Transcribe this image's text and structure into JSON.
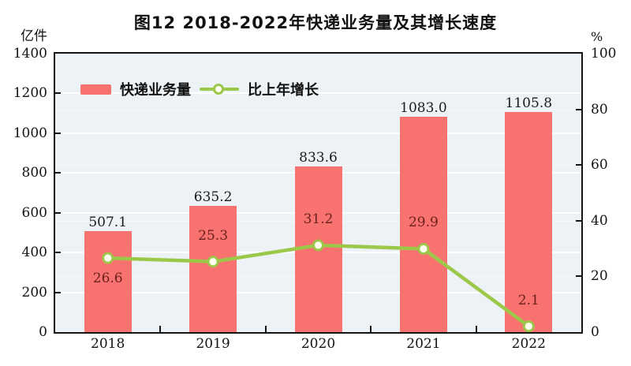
{
  "title": "图12  2018-2022年快递业务量及其增长速度",
  "left_axis": {
    "unit": "亿件",
    "max": 1400,
    "tick_step": 200,
    "ticks": [
      "1400",
      "1200",
      "1000",
      "800",
      "600",
      "400",
      "200",
      "0"
    ]
  },
  "right_axis": {
    "unit": "%",
    "max": 100,
    "tick_step": 20,
    "ticks": [
      "100",
      "80",
      "60",
      "40",
      "20",
      "0"
    ]
  },
  "legend": {
    "items": [
      {
        "label": "快递业务量",
        "type": "bar"
      },
      {
        "label": "比上年增长",
        "type": "line"
      }
    ]
  },
  "chart_data": {
    "type": "bar+line",
    "title": "图12  2018-2022年快递业务量及其增长速度",
    "categories": [
      "2018",
      "2019",
      "2020",
      "2021",
      "2022"
    ],
    "series": [
      {
        "name": "快递业务量",
        "type": "bar",
        "axis": "left",
        "unit": "亿件",
        "values": [
          507.1,
          635.2,
          833.6,
          1083.0,
          1105.8
        ],
        "labels": [
          "507.1",
          "635.2",
          "833.6",
          "1083.0",
          "1105.8"
        ]
      },
      {
        "name": "比上年增长",
        "type": "line",
        "axis": "right",
        "unit": "%",
        "values": [
          26.6,
          25.3,
          31.2,
          29.9,
          2.1
        ],
        "labels": [
          "26.6",
          "25.3",
          "31.2",
          "29.9",
          "2.1"
        ],
        "label_positions": [
          "below",
          "above",
          "above",
          "above",
          "above"
        ]
      }
    ],
    "ylim_left": [
      0,
      1400
    ],
    "ylim_right": [
      0,
      100
    ],
    "grid": true,
    "legend_position": "top-left-inside"
  },
  "colors": {
    "bar": "#f8736f",
    "line": "#9cc84a",
    "marker_fill": "#fffdf0",
    "bar_label": "#1c1c1c",
    "line_label": "#6b211d",
    "plot_bg": "#edf2f6",
    "frame": "#141414",
    "grid_major": "rgba(255,255,255,0.95)",
    "grid_minor": "rgba(255,255,255,0.50)"
  }
}
